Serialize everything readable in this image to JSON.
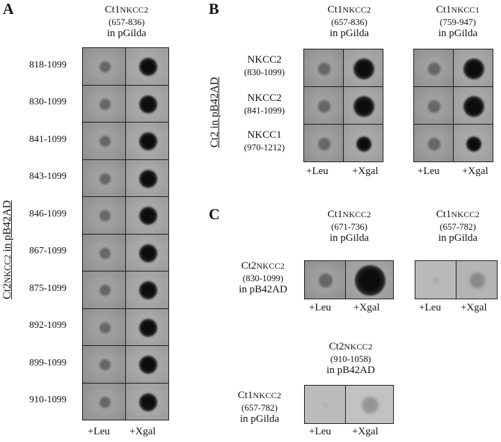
{
  "panels": {
    "A": {
      "letter": "A",
      "bait": {
        "prefix": "Ct1",
        "gene": "NKCC2",
        "range": "(657-836)",
        "vector": "in pGilda"
      },
      "side_label": {
        "prefix": "Ct2",
        "gene": "NKCC2",
        "suffix": " in pB42AD"
      },
      "rows": [
        "818-1099",
        "830-1099",
        "841-1099",
        "843-1099",
        "846-1099",
        "867-1099",
        "875-1099",
        "892-1099",
        "899-1099",
        "910-1099"
      ],
      "cols": [
        "+Leu",
        "+Xgal"
      ]
    },
    "B": {
      "letter": "B",
      "side_label": {
        "text": "Ct2 in pB42AD"
      },
      "baits": [
        {
          "prefix": "Ct1",
          "gene": "NKCC2",
          "range": "(657-836)",
          "vector": "in pGilda"
        },
        {
          "prefix": "Ct1",
          "gene": "NKCC1",
          "range": "(759-947)",
          "vector": "in pGilda"
        }
      ],
      "rows": [
        {
          "name": "NKCC2",
          "range": "(830-1099)"
        },
        {
          "name": "NKCC2",
          "range": "(841-1099)"
        },
        {
          "name": "NKCC1",
          "range": "(970-1212)"
        }
      ],
      "cols": [
        "+Leu",
        "+Xgal"
      ]
    },
    "C": {
      "letter": "C",
      "top_baits": [
        {
          "prefix": "Ct1",
          "gene": "NKCC2",
          "range": "(671-736)",
          "vector": "in pGilda"
        },
        {
          "prefix": "Ct1",
          "gene": "NKCC2",
          "range": "(657-782)",
          "vector": "in pGilda"
        }
      ],
      "top_prey": {
        "prefix": "Ct2",
        "gene": "NKCC2",
        "range": "(830-1099)",
        "vector": "in pB42AD"
      },
      "bottom_bait": {
        "prefix": "Ct2",
        "gene": "NKCC2",
        "range": "(910-1058)",
        "vector": "in pB42AD"
      },
      "bottom_prey": {
        "prefix": "Ct1",
        "gene": "NKCC2",
        "range": "(657-782)",
        "vector": "in pGilda"
      },
      "cols": [
        "+Leu",
        "+Xgal"
      ]
    }
  },
  "colors": {
    "plate_bg": "#9a9a9a",
    "plate_light": "#c4c4c4",
    "colony_dark": "#151515",
    "border": "#1a1a1a"
  }
}
